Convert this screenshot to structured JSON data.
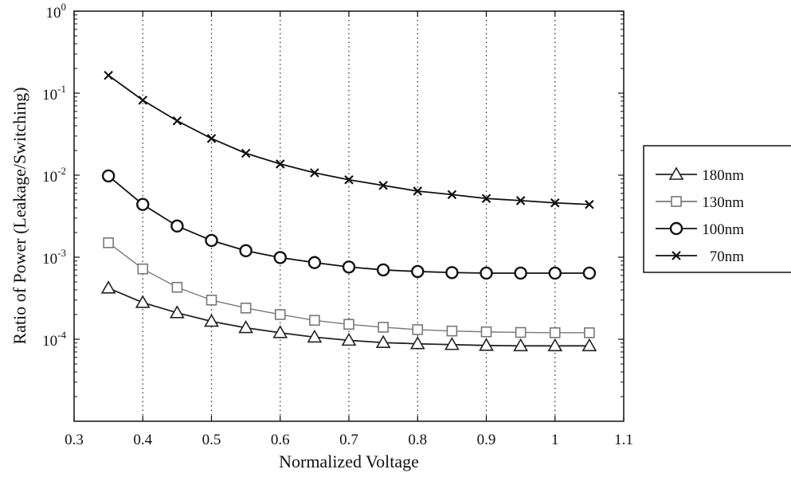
{
  "chart_data": {
    "type": "line",
    "title": "",
    "xlabel": "Normalized Voltage",
    "ylabel": "Ratio of Power (Leakage/Switching)",
    "xlim": [
      0.3,
      1.1
    ],
    "ylim": [
      1e-05,
      1
    ],
    "yscale": "log",
    "x_ticks": [
      "0.3",
      "0.4",
      "0.5",
      "0.6",
      "0.7",
      "0.8",
      "0.9",
      "1",
      "1.1"
    ],
    "y_ticks": [
      {
        "base": "10",
        "exp": "-4"
      },
      {
        "base": "10",
        "exp": "-3"
      },
      {
        "base": "10",
        "exp": "-2"
      },
      {
        "base": "10",
        "exp": "-1"
      },
      {
        "base": "10",
        "exp": "0"
      }
    ],
    "grid": "vertical dotted",
    "legend_position": "right, outside plot",
    "x": [
      0.35,
      0.4,
      0.45,
      0.5,
      0.55,
      0.6,
      0.65,
      0.7,
      0.75,
      0.8,
      0.85,
      0.9,
      0.95,
      1.0,
      1.05
    ],
    "series": [
      {
        "name": "180nm",
        "marker": "triangle",
        "color": "#222222",
        "values": [
          0.00042,
          0.00028,
          0.00021,
          0.000165,
          0.000138,
          0.00012,
          0.000106,
          9.7e-05,
          9.1e-05,
          8.8e-05,
          8.6e-05,
          8.4e-05,
          8.3e-05,
          8.3e-05,
          8.3e-05
        ]
      },
      {
        "name": "130nm",
        "marker": "square",
        "color": "#777777",
        "values": [
          0.0015,
          0.00072,
          0.00043,
          0.0003,
          0.00024,
          0.0002,
          0.00017,
          0.000152,
          0.00014,
          0.000131,
          0.000126,
          0.000123,
          0.000121,
          0.00012,
          0.00012
        ]
      },
      {
        "name": "100nm",
        "marker": "circle",
        "color": "#111111",
        "values": [
          0.0098,
          0.0044,
          0.0024,
          0.0016,
          0.0012,
          0.00099,
          0.00086,
          0.00076,
          0.0007,
          0.00067,
          0.00065,
          0.00064,
          0.00064,
          0.00064,
          0.00064
        ]
      },
      {
        "name": "70nm",
        "marker": "x",
        "color": "#111111",
        "values": [
          0.165,
          0.082,
          0.046,
          0.028,
          0.0185,
          0.0137,
          0.0107,
          0.0088,
          0.0075,
          0.0064,
          0.0058,
          0.0052,
          0.0049,
          0.0046,
          0.0044
        ]
      }
    ]
  }
}
